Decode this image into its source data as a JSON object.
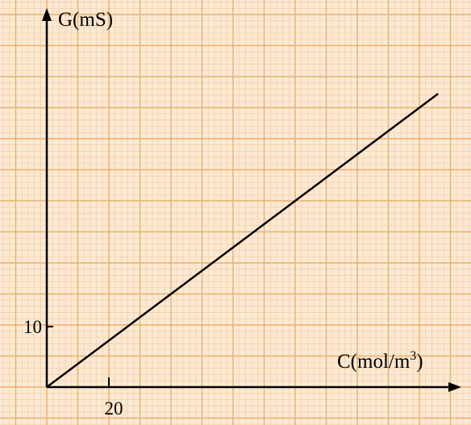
{
  "chart_data": {
    "type": "line",
    "title": "",
    "xlabel": "C(mol/m",
    "xlabel_superscript": "3",
    "xlabel_close": ")",
    "ylabel": "G(mS)",
    "x_tick_label": "20",
    "y_tick_label": "10",
    "x_tick_value": 20,
    "y_tick_value": 10,
    "xlim": [
      0,
      128
    ],
    "ylim": [
      0,
      52
    ],
    "grid": true,
    "series": [
      {
        "points": [
          [
            0,
            0
          ],
          [
            126,
            48.5
          ]
        ]
      }
    ],
    "colors": {
      "paper": "#fbe9d4",
      "minor_grid": "#f3cf9f",
      "major_grid": "#eab06b",
      "line": "#000000"
    }
  }
}
